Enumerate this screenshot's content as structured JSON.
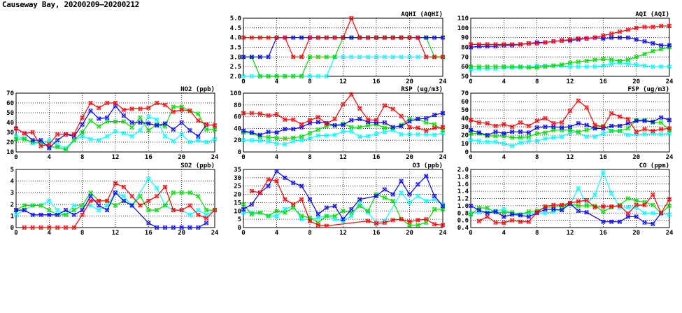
{
  "page_title": "Causeway Bay, 20200209–20200212",
  "chart_data": [
    {
      "type": "line",
      "title": "AQHI (AQHI)",
      "ylim": [
        2,
        5
      ],
      "yticks": [
        2.0,
        2.5,
        3.0,
        3.5,
        4.0,
        4.5,
        5.0
      ],
      "ydecimals": 1,
      "xlim": [
        0,
        24
      ],
      "xticks": [
        0,
        4,
        8,
        12,
        16,
        20,
        24
      ],
      "grid": true,
      "series": [
        {
          "color": "#00ffff",
          "values": [
            2,
            2,
            2,
            2,
            2,
            2,
            2,
            2,
            2,
            2,
            2,
            3,
            3,
            3,
            3,
            3,
            3,
            3,
            3,
            3,
            3,
            3,
            3,
            3,
            3
          ]
        },
        {
          "color": "#00dd00",
          "values": [
            3,
            3,
            2,
            2,
            2,
            2,
            2,
            2,
            3,
            3,
            3,
            3,
            4,
            4,
            4,
            4,
            4,
            4,
            4,
            4,
            4,
            4,
            4,
            3,
            3
          ]
        },
        {
          "color": "#0000ff",
          "values": [
            3,
            3,
            3,
            3,
            4,
            4,
            4,
            4,
            4,
            4,
            4,
            4,
            4,
            4,
            4,
            4,
            4,
            4,
            4,
            4,
            4,
            4,
            4,
            4,
            4
          ]
        },
        {
          "color": "#ff0000",
          "values": [
            4,
            4,
            4,
            4,
            4,
            4,
            3,
            3,
            4,
            4,
            4,
            4,
            4,
            5,
            4,
            4,
            4,
            4,
            4,
            4,
            4,
            4,
            3,
            3,
            3
          ]
        }
      ]
    },
    {
      "type": "line",
      "title": "AQI (AQI)",
      "ylim": [
        50,
        110
      ],
      "yticks": [
        50,
        60,
        70,
        80,
        90,
        100,
        110
      ],
      "ydecimals": 0,
      "xlim": [
        0,
        24
      ],
      "xticks": [
        0,
        4,
        8,
        12,
        16,
        20,
        24
      ],
      "grid": true,
      "series": [
        {
          "color": "#00ffff",
          "values": [
            57,
            58,
            58,
            58,
            59,
            59,
            59,
            60,
            61,
            61,
            61,
            61,
            60,
            60,
            60,
            60,
            61,
            63,
            64,
            63,
            62,
            61,
            60,
            60,
            60
          ]
        },
        {
          "color": "#00dd00",
          "values": [
            60,
            60,
            60,
            60,
            60,
            60,
            60,
            59,
            59,
            60,
            61,
            62,
            64,
            65,
            66,
            67,
            68,
            67,
            66,
            67,
            70,
            73,
            76,
            78,
            80
          ]
        },
        {
          "color": "#0000ff",
          "values": [
            80,
            81,
            81,
            81,
            82,
            82,
            83,
            84,
            85,
            85,
            86,
            87,
            87,
            88,
            89,
            90,
            89,
            90,
            90,
            90,
            88,
            86,
            84,
            82,
            82
          ]
        },
        {
          "color": "#ff0000",
          "values": [
            83,
            83,
            83,
            83,
            83,
            83,
            83,
            84,
            84,
            85,
            86,
            87,
            88,
            89,
            89,
            90,
            92,
            94,
            96,
            98,
            100,
            101,
            101,
            102,
            102
          ]
        }
      ]
    },
    {
      "type": "line",
      "title": "NO2 (ppb)",
      "ylim": [
        10,
        70
      ],
      "yticks": [
        10,
        20,
        30,
        40,
        50,
        60,
        70
      ],
      "ydecimals": 0,
      "xlim": [
        0,
        24
      ],
      "xticks": [
        0,
        4,
        8,
        12,
        16,
        20,
        24
      ],
      "grid": true,
      "series": [
        {
          "color": "#00ffff",
          "values": [
            26,
            24,
            19,
            19,
            22,
            17,
            14,
            22,
            26,
            23,
            22,
            26,
            31,
            29,
            26,
            32,
            46,
            43,
            26,
            21,
            28,
            20,
            22,
            20,
            23
          ]
        },
        {
          "color": "#00dd00",
          "values": [
            23,
            23,
            20,
            20,
            15,
            15,
            12,
            22,
            30,
            42,
            36,
            41,
            41,
            41,
            35,
            45,
            32,
            38,
            36,
            56,
            56,
            52,
            49,
            33,
            33
          ]
        },
        {
          "color": "#0000ff",
          "values": [
            34,
            29,
            22,
            22,
            14,
            22,
            28,
            26,
            38,
            52,
            44,
            45,
            57,
            47,
            40,
            40,
            39,
            37,
            39,
            33,
            40,
            32,
            26,
            38,
            null
          ]
        },
        {
          "color": "#ff0000",
          "values": [
            34,
            29,
            30,
            16,
            18,
            28,
            28,
            28,
            45,
            60,
            55,
            60,
            60,
            53,
            54,
            54,
            55,
            60,
            58,
            51,
            53,
            52,
            42,
            38,
            37
          ]
        }
      ]
    },
    {
      "type": "line",
      "title": "RSP (ug/m3)",
      "ylim": [
        0,
        100
      ],
      "yticks": [
        0,
        20,
        40,
        60,
        80,
        100
      ],
      "ydecimals": 0,
      "xlim": [
        0,
        24
      ],
      "xticks": [
        0,
        4,
        8,
        12,
        16,
        20,
        24
      ],
      "grid": true,
      "series": [
        {
          "color": "#00ffff",
          "values": [
            20,
            20,
            19,
            18,
            14,
            13,
            18,
            20,
            23,
            28,
            28,
            29,
            35,
            35,
            26,
            27,
            31,
            34,
            37,
            30,
            30,
            30,
            30,
            29,
            32
          ]
        },
        {
          "color": "#00dd00",
          "values": [
            33,
            32,
            26,
            25,
            24,
            23,
            24,
            26,
            32,
            38,
            44,
            45,
            48,
            42,
            42,
            45,
            47,
            41,
            41,
            46,
            56,
            56,
            50,
            47,
            37
          ]
        },
        {
          "color": "#0000ff",
          "values": [
            36,
            33,
            29,
            34,
            33,
            39,
            39,
            42,
            49,
            51,
            49,
            45,
            46,
            54,
            56,
            51,
            50,
            50,
            42,
            44,
            52,
            56,
            57,
            63,
            66
          ]
        },
        {
          "color": "#ff0000",
          "values": [
            66,
            66,
            65,
            62,
            64,
            55,
            55,
            47,
            54,
            59,
            48,
            56,
            81,
            98,
            74,
            55,
            54,
            79,
            73,
            61,
            42,
            41,
            36,
            41,
            42
          ]
        }
      ]
    },
    {
      "type": "line",
      "title": "FSP (ug/m3)",
      "ylim": [
        0,
        70
      ],
      "yticks": [
        0,
        10,
        20,
        30,
        40,
        50,
        60,
        70
      ],
      "ydecimals": 0,
      "xlim": [
        0,
        24
      ],
      "xticks": [
        0,
        4,
        8,
        12,
        16,
        20,
        24
      ],
      "grid": true,
      "series": [
        {
          "color": "#00ffff",
          "values": [
            14,
            13,
            12,
            12,
            10,
            7,
            11,
            13,
            13,
            16,
            17,
            18,
            23,
            23,
            18,
            18,
            22,
            25,
            25,
            20,
            21,
            21,
            22,
            21,
            22
          ]
        },
        {
          "color": "#00dd00",
          "values": [
            22,
            22,
            19,
            19,
            19,
            17,
            17,
            18,
            22,
            23,
            26,
            26,
            26,
            24,
            26,
            29,
            31,
            25,
            25,
            28,
            38,
            38,
            35,
            35,
            26
          ]
        },
        {
          "color": "#0000ff",
          "values": [
            26,
            23,
            20,
            24,
            22,
            24,
            24,
            23,
            29,
            30,
            30,
            29,
            30,
            34,
            32,
            28,
            28,
            31,
            31,
            34,
            37,
            37,
            36,
            41,
            38
          ]
        },
        {
          "color": "#ff0000",
          "values": [
            38,
            35,
            34,
            31,
            33,
            30,
            35,
            31,
            37,
            40,
            34,
            35,
            49,
            61,
            53,
            32,
            30,
            46,
            42,
            39,
            24,
            27,
            25,
            27,
            28
          ]
        }
      ]
    },
    {
      "type": "line",
      "title": "SO2 (ppb)",
      "ylim": [
        0,
        5
      ],
      "yticks": [
        0,
        1,
        2,
        3,
        4,
        5
      ],
      "ydecimals": 0,
      "xlim": [
        0,
        24
      ],
      "xticks": [
        0,
        4,
        8,
        12,
        16,
        20,
        24
      ],
      "grid": true,
      "series": [
        {
          "color": "#00ffff",
          "values": [
            1.1,
            1.5,
            1.9,
            1.9,
            2.3,
            1.5,
            1.1,
            1.9,
            1.9,
            1.9,
            1.5,
            1.9,
            3.0,
            2.7,
            1.9,
            null,
            4.2,
            3.4,
            1.9,
            1.5,
            1.5,
            1.1,
            1.5,
            1.1,
            1.5
          ]
        },
        {
          "color": "#00dd00",
          "values": [
            1.5,
            1.9,
            1.9,
            1.9,
            1.5,
            1.1,
            1.1,
            1.5,
            1.9,
            3.0,
            2.3,
            2.3,
            1.9,
            2.3,
            1.9,
            2.7,
            1.5,
            1.5,
            1.9,
            3.0,
            3.0,
            3.0,
            2.7,
            1.5,
            1.5
          ]
        },
        {
          "color": "#0000ff",
          "values": [
            1.5,
            1.5,
            1.1,
            1.1,
            1.1,
            1.1,
            1.5,
            1.1,
            1.5,
            2.7,
            1.9,
            1.5,
            3.0,
            2.3,
            1.9,
            null,
            0.4,
            0,
            0,
            0,
            0,
            0,
            0,
            0.4,
            null
          ]
        },
        {
          "color": "#ff0000",
          "values": [
            null,
            0,
            0,
            0,
            0,
            0,
            0,
            0,
            1.1,
            2.3,
            2.3,
            2.3,
            3.8,
            3.5,
            2.7,
            1.9,
            2.3,
            2.7,
            3.5,
            1.5,
            1.5,
            1.9,
            1.1,
            0.8,
            1.5
          ]
        }
      ]
    },
    {
      "type": "line",
      "title": "O3 (ppb)",
      "ylim": [
        0,
        35
      ],
      "yticks": [
        0,
        5,
        10,
        15,
        20,
        25,
        30,
        35
      ],
      "ydecimals": 0,
      "xlim": [
        0,
        24
      ],
      "xticks": [
        0,
        4,
        8,
        12,
        16,
        20,
        24
      ],
      "grid": true,
      "series": [
        {
          "color": "#00ffff",
          "values": [
            9,
            9,
            9,
            7,
            7,
            11,
            13,
            5,
            5,
            6,
            7,
            5,
            4,
            7,
            15,
            9,
            3,
            4,
            null,
            21,
            15,
            19,
            16,
            17,
            14
          ]
        },
        {
          "color": "#00dd00",
          "values": [
            14,
            8,
            9,
            7,
            10,
            9,
            12,
            7,
            6,
            3,
            7,
            7,
            10,
            9,
            13,
            10,
            20,
            18,
            16,
            5,
            1.5,
            1.5,
            3,
            11,
            11
          ]
        },
        {
          "color": "#0000ff",
          "values": [
            11,
            14,
            21,
            25,
            34,
            30,
            27,
            25,
            17,
            8,
            12,
            13,
            5,
            11,
            17,
            null,
            19,
            23,
            20,
            28,
            20,
            26,
            31,
            19,
            13
          ]
        },
        {
          "color": "#ff0000",
          "values": [
            null,
            22,
            21,
            29,
            28,
            17,
            14,
            17,
            4,
            1.5,
            1,
            null,
            null,
            null,
            null,
            4,
            2.5,
            3,
            4.5,
            5,
            3.5,
            4.5,
            5,
            2,
            1.5
          ]
        }
      ]
    },
    {
      "type": "line",
      "title": "CO (ppm)",
      "ylim": [
        0.4,
        2.0
      ],
      "yticks": [
        0.4,
        0.6,
        0.8,
        1.0,
        1.2,
        1.4,
        1.6,
        1.8,
        2.0
      ],
      "ydecimals": 1,
      "xlim": [
        0,
        24
      ],
      "xticks": [
        0,
        4,
        8,
        12,
        16,
        20,
        24
      ],
      "grid": true,
      "series": [
        {
          "color": "#00ffff",
          "values": [
            0.8,
            0.82,
            0.82,
            0.86,
            0.9,
            0.78,
            0.76,
            0.8,
            0.8,
            0.8,
            0.84,
            0.92,
            1.04,
            1.48,
            1.04,
            1.3,
            1.92,
            1.34,
            0.96,
            0.96,
            0.96,
            0.8,
            0.8,
            0.78,
            0.76
          ]
        },
        {
          "color": "#00dd00",
          "values": [
            0.76,
            0.94,
            0.94,
            0.82,
            0.82,
            0.82,
            0.76,
            0.84,
            0.86,
            0.96,
            0.96,
            0.98,
            1.06,
            1.0,
            1.0,
            1.0,
            0.84,
            0.96,
            1.02,
            1.2,
            1.14,
            1.1,
            1.02,
            0.8,
            1.0
          ]
        },
        {
          "color": "#0000ff",
          "values": [
            1.0,
            0.88,
            0.8,
            0.84,
            0.7,
            0.76,
            0.74,
            0.7,
            0.8,
            0.9,
            0.9,
            0.88,
            1.06,
            0.86,
            0.82,
            null,
            0.56,
            0.56,
            0.56,
            0.7,
            0.7,
            0.54,
            0.5,
            0.8,
            null
          ]
        },
        {
          "color": "#ff0000",
          "values": [
            null,
            0.58,
            0.7,
            0.54,
            0.53,
            0.6,
            0.56,
            0.56,
            0.82,
            0.98,
            1.02,
            1.02,
            1.08,
            1.12,
            1.15,
            0.96,
            0.98,
            0.98,
            1.0,
            0.79,
            1.02,
            1.02,
            1.31,
            0.8,
            1.18
          ]
        }
      ]
    }
  ]
}
